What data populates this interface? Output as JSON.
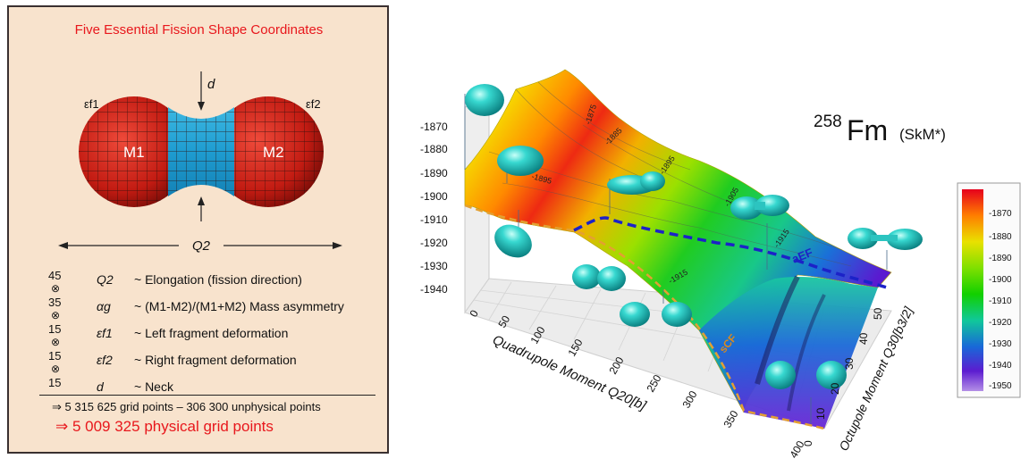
{
  "left": {
    "title": "Five Essential Fission Shape Coordinates",
    "shape_labels": {
      "m1": "M1",
      "m2": "M2",
      "eps_f1": "εf1",
      "eps_f2": "εf2",
      "d": "d",
      "q2": "Q2"
    },
    "coordinates": [
      {
        "count": "45",
        "symbol": "Q2",
        "desc": "~  Elongation (fission direction)",
        "cross": "⊗"
      },
      {
        "count": "35",
        "symbol": "αg",
        "desc": "~  (M1-M2)/(M1+M2) Mass asymmetry",
        "cross": "⊗"
      },
      {
        "count": "15",
        "symbol": "εf1",
        "desc": "~  Left fragment deformation",
        "cross": "⊗"
      },
      {
        "count": "15",
        "symbol": "εf2",
        "desc": "~  Right fragment deformation",
        "cross": "⊗"
      },
      {
        "count": "15",
        "symbol": "d",
        "desc": "~  Neck",
        "cross": ""
      }
    ],
    "grid_line": "⇒  5 315 625 grid points – 306 300 unphysical points",
    "physical_line": "⇒  5 009 325 physical grid points",
    "colors": {
      "title": "#e8171c",
      "background": "#f8e3cd",
      "fragment": "#c21b12",
      "neck": "#27a7d4"
    }
  },
  "right": {
    "nucleus_mass": "258",
    "nucleus_symbol": "Fm",
    "functional": "(SkM*)",
    "z_ticks": [
      "-1870",
      "-1880",
      "-1890",
      "-1900",
      "-1910",
      "-1920",
      "-1930",
      "-1940"
    ],
    "x_axis_label": "Quadrupole Moment Q20[b]",
    "x_ticks": [
      "0",
      "50",
      "100",
      "150",
      "200",
      "250",
      "300",
      "350",
      "400"
    ],
    "y_axis_label": "Octupole Moment Q30[b3/2]",
    "y_ticks": [
      "0",
      "10",
      "20",
      "30",
      "40",
      "50"
    ],
    "contour_labels": [
      "-1875",
      "-1885",
      "-1895",
      "-1895",
      "-1905",
      "-1915",
      "-1915"
    ],
    "path_labels": {
      "aef": "aEF",
      "scf": "sCF"
    },
    "colorbar_ticks": [
      "-1870",
      "-1880",
      "-1890",
      "-1900",
      "-1910",
      "-1920",
      "-1930",
      "-1940",
      "-1950"
    ],
    "colorbar_colors": [
      "#e6001c",
      "#ff7e00",
      "#e9e100",
      "#7fe000",
      "#11d000",
      "#10c89a",
      "#1868d8",
      "#5c1cd0",
      "#b48fe6"
    ],
    "path_colors": {
      "aef": "#1c22c8",
      "scf": "#e3a032"
    }
  }
}
